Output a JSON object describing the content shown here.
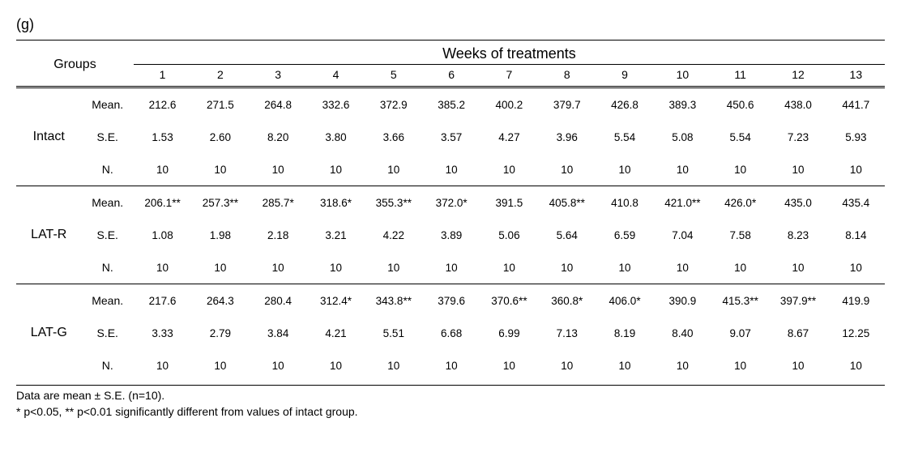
{
  "panel_label": "(g)",
  "header": {
    "groups_label": "Groups",
    "weeks_label": "Weeks of treatments",
    "week_nums": [
      "1",
      "2",
      "3",
      "4",
      "5",
      "6",
      "7",
      "8",
      "9",
      "10",
      "11",
      "12",
      "13"
    ]
  },
  "groups": [
    {
      "name": "Intact",
      "rows": [
        {
          "stat": "Mean.",
          "values": [
            "212.6",
            "271.5",
            "264.8",
            "332.6",
            "372.9",
            "385.2",
            "400.2",
            "379.7",
            "426.8",
            "389.3",
            "450.6",
            "438.0",
            "441.7"
          ]
        },
        {
          "stat": "S.E.",
          "values": [
            "1.53",
            "2.60",
            "8.20",
            "3.80",
            "3.66",
            "3.57",
            "4.27",
            "3.96",
            "5.54",
            "5.08",
            "5.54",
            "7.23",
            "5.93"
          ]
        },
        {
          "stat": "N.",
          "values": [
            "10",
            "10",
            "10",
            "10",
            "10",
            "10",
            "10",
            "10",
            "10",
            "10",
            "10",
            "10",
            "10"
          ]
        }
      ]
    },
    {
      "name": "LAT-R",
      "rows": [
        {
          "stat": "Mean.",
          "values": [
            "206.1**",
            "257.3**",
            "285.7*",
            "318.6*",
            "355.3**",
            "372.0*",
            "391.5",
            "405.8**",
            "410.8",
            "421.0**",
            "426.0*",
            "435.0",
            "435.4"
          ]
        },
        {
          "stat": "S.E.",
          "values": [
            "1.08",
            "1.98",
            "2.18",
            "3.21",
            "4.22",
            "3.89",
            "5.06",
            "5.64",
            "6.59",
            "7.04",
            "7.58",
            "8.23",
            "8.14"
          ]
        },
        {
          "stat": "N.",
          "values": [
            "10",
            "10",
            "10",
            "10",
            "10",
            "10",
            "10",
            "10",
            "10",
            "10",
            "10",
            "10",
            "10"
          ]
        }
      ]
    },
    {
      "name": "LAT-G",
      "rows": [
        {
          "stat": "Mean.",
          "values": [
            "217.6",
            "264.3",
            "280.4",
            "312.4*",
            "343.8**",
            "379.6",
            "370.6**",
            "360.8*",
            "406.0*",
            "390.9",
            "415.3**",
            "397.9**",
            "419.9"
          ]
        },
        {
          "stat": "S.E.",
          "values": [
            "3.33",
            "2.79",
            "3.84",
            "4.21",
            "5.51",
            "6.68",
            "6.99",
            "7.13",
            "8.19",
            "8.40",
            "9.07",
            "8.67",
            "12.25"
          ]
        },
        {
          "stat": "N.",
          "values": [
            "10",
            "10",
            "10",
            "10",
            "10",
            "10",
            "10",
            "10",
            "10",
            "10",
            "10",
            "10",
            "10"
          ]
        }
      ]
    }
  ],
  "footer": {
    "line1": "Data are mean ± S.E. (n=10).",
    "line2": "* p<0.05, ** p<0.01 significantly different from values of intact group."
  }
}
